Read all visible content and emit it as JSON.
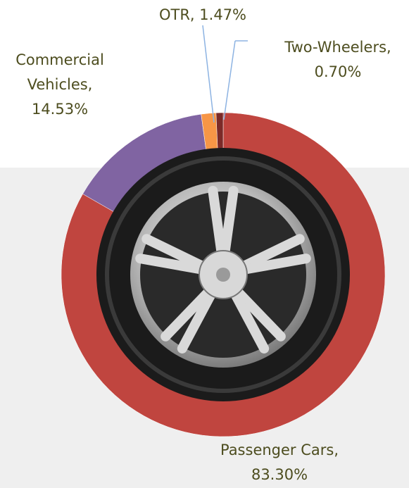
{
  "chart_data": {
    "type": "donut",
    "categories": [
      "Passenger Cars,",
      "Commercial Vehicles,",
      "OTR,",
      "Two-Wheelers,"
    ],
    "values": [
      83.3,
      14.53,
      1.47,
      0.7
    ],
    "value_labels": [
      "83.30%",
      "14.53%",
      "1.47%",
      "0.70%"
    ],
    "colors": [
      "#c0453f",
      "#8064a2",
      "#f79646",
      "#7b2a28"
    ]
  }
}
